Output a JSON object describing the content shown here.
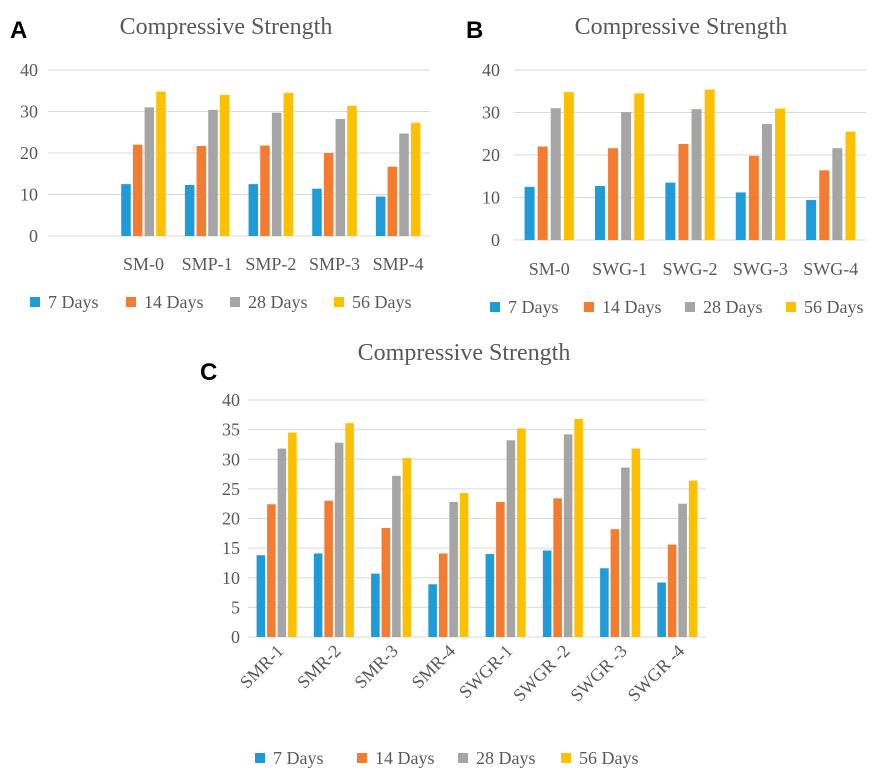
{
  "colors": {
    "series": [
      "#1f9cd8",
      "#f47c30",
      "#a5a5a5",
      "#ffc000"
    ],
    "grid": "#d9d9d9",
    "text": "#595959"
  },
  "chart_data": [
    {
      "panel": "A",
      "type": "bar",
      "title": "Compressive Strength",
      "categories": [
        "",
        "SM-0",
        "SMP-1",
        "SMP-2",
        "SMP-3",
        "SMP-4"
      ],
      "series": [
        {
          "name": "7 Days",
          "values": [
            null,
            12.5,
            12.3,
            12.5,
            11.4,
            9.5
          ]
        },
        {
          "name": "14 Days",
          "values": [
            null,
            22.0,
            21.7,
            21.8,
            20.0,
            16.7
          ]
        },
        {
          "name": "28 Days",
          "values": [
            null,
            31.0,
            30.4,
            29.7,
            28.2,
            24.7
          ]
        },
        {
          "name": "56 Days",
          "values": [
            null,
            34.8,
            34.0,
            34.5,
            31.4,
            27.3
          ]
        }
      ],
      "yticks": [
        0,
        10,
        20,
        30,
        40
      ],
      "ylim": [
        0,
        40
      ],
      "grid": true,
      "legend": "bottom"
    },
    {
      "panel": "B",
      "type": "bar",
      "title": "Compressive Strength",
      "categories": [
        "SM-0",
        "SWG-1",
        "SWG-2",
        "SWG-3",
        "SWG-4"
      ],
      "series": [
        {
          "name": "7 Days",
          "values": [
            12.5,
            12.7,
            13.5,
            11.2,
            9.4
          ]
        },
        {
          "name": "14 Days",
          "values": [
            22.0,
            21.6,
            22.6,
            19.8,
            16.4
          ]
        },
        {
          "name": "28 Days",
          "values": [
            31.0,
            30.1,
            30.8,
            27.3,
            21.6
          ]
        },
        {
          "name": "56 Days",
          "values": [
            34.8,
            34.5,
            35.4,
            30.9,
            25.5
          ]
        }
      ],
      "yticks": [
        0,
        10,
        20,
        30,
        40
      ],
      "ylim": [
        0,
        40
      ],
      "grid": true,
      "legend": "bottom"
    },
    {
      "panel": "C",
      "type": "bar",
      "title": "Compressive Strength",
      "categories": [
        "SMR-1",
        "SMR-2",
        "SMR-3",
        "SMR-4",
        "SWGR-1",
        "SWGR -2",
        "SWGR -3",
        "SWGR -4"
      ],
      "series": [
        {
          "name": "7 Days",
          "values": [
            13.8,
            14.1,
            10.7,
            8.9,
            14.0,
            14.6,
            11.6,
            9.2
          ]
        },
        {
          "name": "14 Days",
          "values": [
            22.4,
            23.0,
            18.4,
            14.1,
            22.8,
            23.4,
            18.2,
            15.6
          ]
        },
        {
          "name": "28 Days",
          "values": [
            31.8,
            32.8,
            27.2,
            22.8,
            33.2,
            34.2,
            28.6,
            22.5
          ]
        },
        {
          "name": "56 Days",
          "values": [
            34.5,
            36.1,
            30.2,
            24.3,
            35.2,
            36.8,
            31.8,
            26.4
          ]
        }
      ],
      "yticks": [
        0,
        5,
        10,
        15,
        20,
        25,
        30,
        35,
        40
      ],
      "ylim": [
        0,
        40
      ],
      "xtick_rotation": -45,
      "grid": true,
      "legend": "bottom"
    }
  ]
}
